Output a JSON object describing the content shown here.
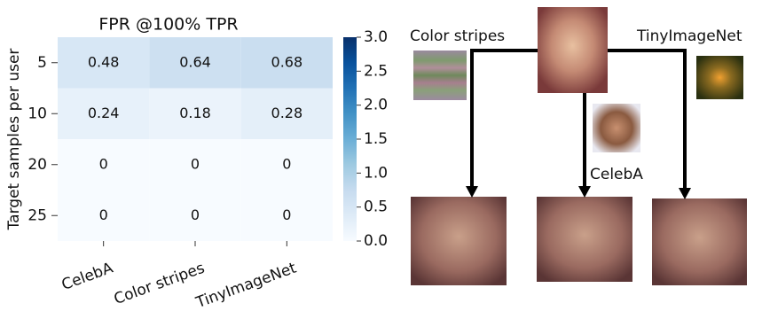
{
  "chart_data": {
    "type": "heatmap",
    "title": "FPR @100% TPR",
    "y_label": "Target samples per user",
    "rows": [
      "5",
      "10",
      "20",
      "25"
    ],
    "categories": [
      "CelebA",
      "Color stripes",
      "TinyImageNet"
    ],
    "values": [
      [
        0.48,
        0.64,
        0.68
      ],
      [
        0.24,
        0.18,
        0.28
      ],
      [
        0,
        0,
        0
      ],
      [
        0,
        0,
        0
      ]
    ],
    "zlim": [
      0,
      3
    ],
    "zticks": [
      {
        "value": 0,
        "label": "0.0"
      },
      0.5,
      {
        "value": 1,
        "label": "1.0"
      },
      1.5,
      {
        "value": 2,
        "label": "2.0"
      },
      2.5,
      {
        "value": 3,
        "label": "3.0"
      }
    ]
  },
  "diagram": {
    "labels": [
      "Color stripes",
      "TinyImageNet",
      "CelebA"
    ]
  }
}
